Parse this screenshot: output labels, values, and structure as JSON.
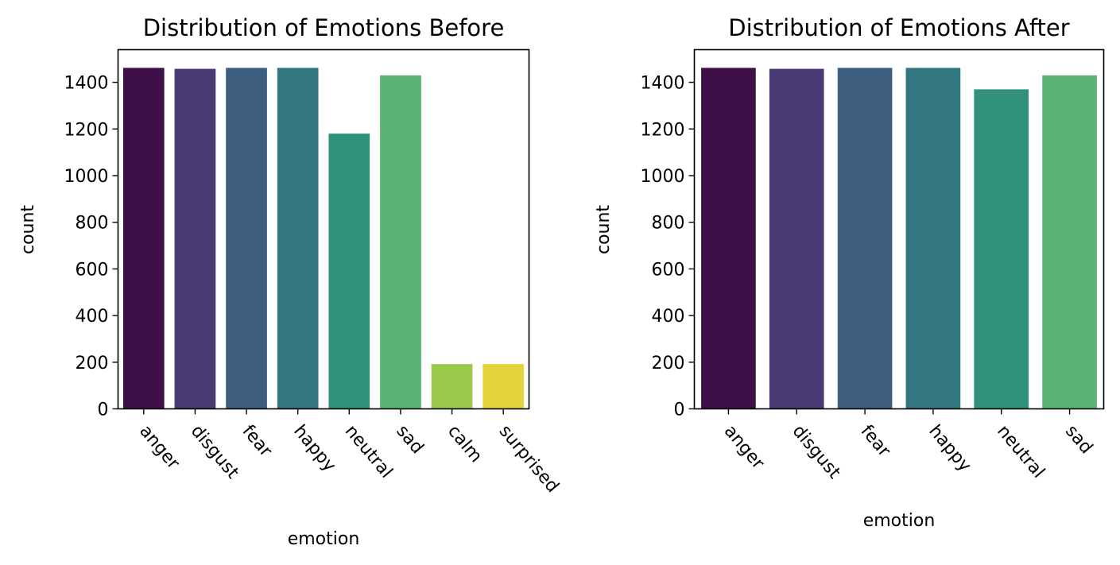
{
  "chart_data": [
    {
      "type": "bar",
      "title": "Distribution of Emotions Before",
      "xlabel": "emotion",
      "ylabel": "count",
      "categories": [
        "anger",
        "disgust",
        "fear",
        "happy",
        "neutral",
        "sad",
        "calm",
        "surprised"
      ],
      "values": [
        1462,
        1458,
        1462,
        1462,
        1180,
        1430,
        192,
        192
      ],
      "colors": [
        "#3f0f48",
        "#4a3a74",
        "#3f5e7f",
        "#32767f",
        "#2f917c",
        "#5ab374",
        "#9ac84b",
        "#e2d43a"
      ],
      "ylim": [
        0,
        1540
      ],
      "yticks": [
        0,
        200,
        400,
        600,
        800,
        1000,
        1200,
        1400
      ],
      "grid": false
    },
    {
      "type": "bar",
      "title": "Distribution of Emotions After",
      "xlabel": "emotion",
      "ylabel": "count",
      "categories": [
        "anger",
        "disgust",
        "fear",
        "happy",
        "neutral",
        "sad"
      ],
      "values": [
        1462,
        1458,
        1462,
        1462,
        1370,
        1430
      ],
      "colors": [
        "#3f0f48",
        "#4a3a74",
        "#3f5e7f",
        "#32767f",
        "#2f917c",
        "#5ab374"
      ],
      "ylim": [
        0,
        1540
      ],
      "yticks": [
        0,
        200,
        400,
        600,
        800,
        1000,
        1200,
        1400
      ],
      "grid": false
    }
  ]
}
